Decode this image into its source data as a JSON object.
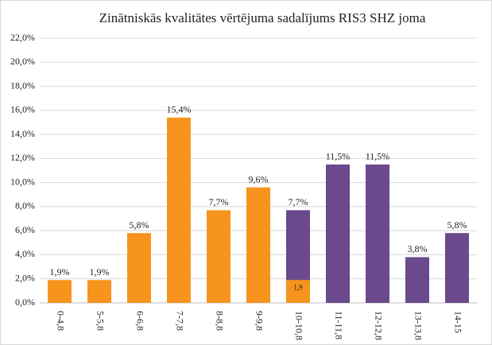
{
  "chart_data": {
    "type": "bar",
    "title": "Zinātniskās kvalitātes vērtējuma sadalījums RIS3 SHZ joma",
    "categories": [
      "0-4,8",
      "5-5,8",
      "6-6,8",
      "7-7,8",
      "8-8,8",
      "9-9,8",
      "10-10,8",
      "11-11,8",
      "12-12,8",
      "13-13,8",
      "14-15"
    ],
    "series": [
      {
        "color": "#f7941d",
        "values": [
          1.9,
          1.9,
          5.8,
          15.4,
          7.7,
          9.6,
          1.9,
          null,
          null,
          null,
          null
        ],
        "value_labels": [
          "1,9%",
          "1,9%",
          "5,8%",
          "15,4%",
          "7,7%",
          "9,6%",
          "1,9",
          null,
          null,
          null,
          null
        ]
      },
      {
        "color": "#6a4a8c",
        "values": [
          null,
          null,
          null,
          null,
          null,
          null,
          7.7,
          11.5,
          11.5,
          3.8,
          5.8
        ],
        "value_labels": [
          null,
          null,
          null,
          null,
          null,
          null,
          "7,7%",
          "11,5%",
          "11,5%",
          "3,8%",
          "5,8%"
        ]
      }
    ],
    "ylim": [
      0,
      22
    ],
    "yticks": [
      {
        "value": 0,
        "label": "0,0%"
      },
      {
        "value": 2,
        "label": "2,0%"
      },
      {
        "value": 4,
        "label": "4,0%"
      },
      {
        "value": 6,
        "label": "6,0%"
      },
      {
        "value": 8,
        "label": "8,0%"
      },
      {
        "value": 10,
        "label": "10,0%"
      },
      {
        "value": 12,
        "label": "12,0%"
      },
      {
        "value": 14,
        "label": "14,0%"
      },
      {
        "value": 16,
        "label": "16,0%"
      },
      {
        "value": 18,
        "label": "18,0%"
      },
      {
        "value": 20,
        "label": "20,0%"
      },
      {
        "value": 22,
        "label": "22,0%"
      }
    ],
    "grid": true
  }
}
